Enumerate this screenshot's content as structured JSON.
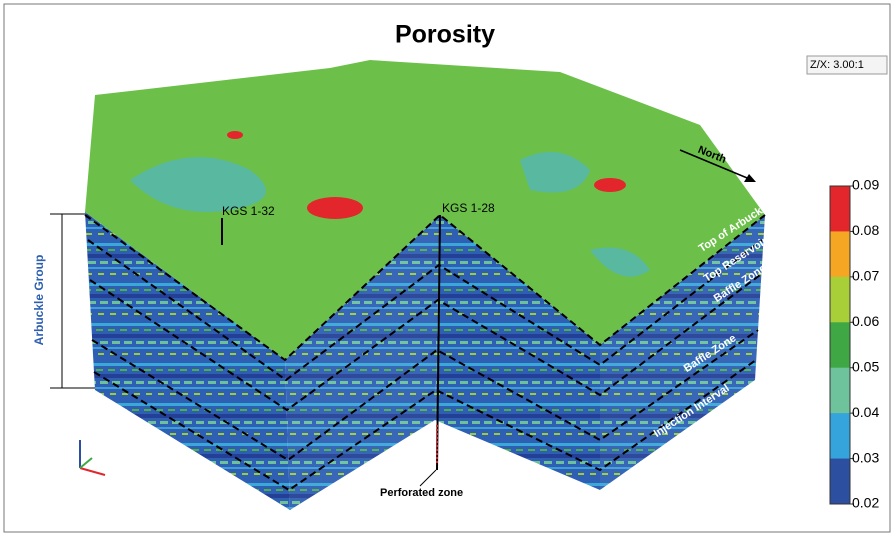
{
  "title": "Porosity",
  "scale": "Z/X: 3.00:1",
  "direction": "North",
  "wells": [
    "KGS 1-32",
    "KGS 1-28"
  ],
  "group": "Arbuckle Group",
  "zones": [
    "Top of Arbuckle",
    "Top Reservoir",
    "Baffle Zone",
    "Baffle Zone",
    "Injection Interval"
  ],
  "annotation": "Perforated zone",
  "colorbar": {
    "ticks": [
      0.09,
      0.08,
      0.07,
      0.06,
      0.05,
      0.04,
      0.03,
      0.02
    ],
    "colors": [
      "#e3262b",
      "#f5a623",
      "#a9cf38",
      "#3fa845",
      "#6fc39c",
      "#35a3dc",
      "#2d4f9f"
    ]
  }
}
